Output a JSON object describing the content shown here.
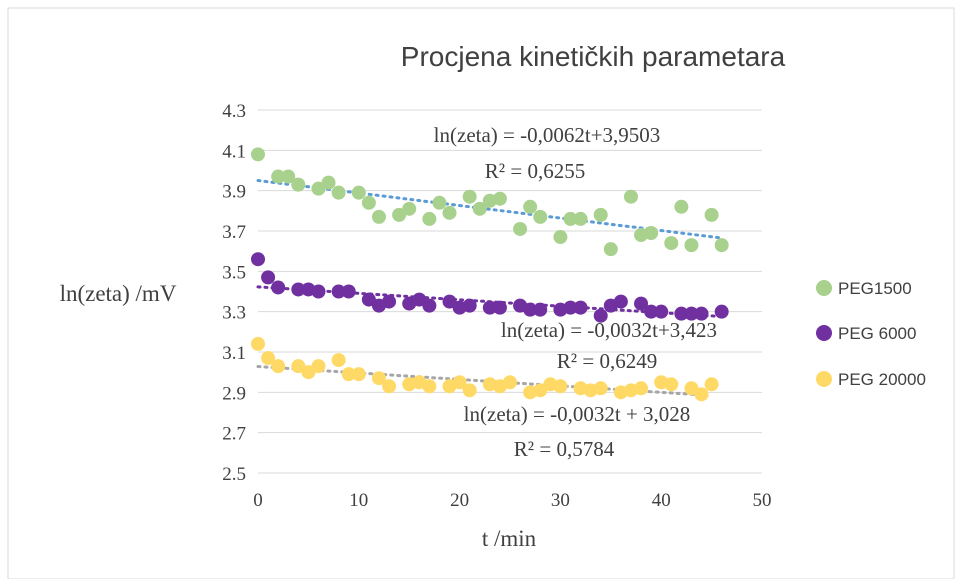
{
  "chart_data": {
    "type": "scatter",
    "title": "Procjena kinetičkih parametara",
    "xlabel": "t /min",
    "ylabel": "ln(zeta) /mV",
    "xlim": [
      0,
      50
    ],
    "ylim": [
      2.5,
      4.3
    ],
    "x_ticks": [
      "0",
      "10",
      "20",
      "30",
      "40",
      "50"
    ],
    "y_ticks": [
      "2.5",
      "2.7",
      "2.9",
      "3.1",
      "3.3",
      "3.5",
      "3.7",
      "3.9",
      "4.1",
      "4.3"
    ],
    "grid": true,
    "legend_position": "right",
    "series": [
      {
        "name": "PEG1500",
        "color": "#a9d18e",
        "trend_color": "#5b9bd5",
        "trendline": {
          "slope": -0.0062,
          "intercept": 3.9503
        },
        "equation": "ln(zeta) = -0,0062t+3,9503",
        "r2": "R² = 0,6255",
        "points": [
          [
            0,
            4.08
          ],
          [
            2,
            3.97
          ],
          [
            3,
            3.97
          ],
          [
            4,
            3.93
          ],
          [
            6,
            3.91
          ],
          [
            7,
            3.94
          ],
          [
            8,
            3.89
          ],
          [
            10,
            3.89
          ],
          [
            11,
            3.84
          ],
          [
            12,
            3.77
          ],
          [
            14,
            3.78
          ],
          [
            15,
            3.81
          ],
          [
            17,
            3.76
          ],
          [
            18,
            3.84
          ],
          [
            19,
            3.79
          ],
          [
            21,
            3.87
          ],
          [
            22,
            3.81
          ],
          [
            23,
            3.85
          ],
          [
            24,
            3.86
          ],
          [
            26,
            3.71
          ],
          [
            27,
            3.82
          ],
          [
            28,
            3.77
          ],
          [
            30,
            3.67
          ],
          [
            31,
            3.76
          ],
          [
            32,
            3.76
          ],
          [
            34,
            3.78
          ],
          [
            35,
            3.61
          ],
          [
            37,
            3.87
          ],
          [
            38,
            3.68
          ],
          [
            39,
            3.69
          ],
          [
            41,
            3.64
          ],
          [
            42,
            3.82
          ],
          [
            43,
            3.63
          ],
          [
            45,
            3.78
          ],
          [
            46,
            3.63
          ]
        ]
      },
      {
        "name": "PEG 6000",
        "color": "#7030a0",
        "trend_color": "#7030a0",
        "trendline": {
          "slope": -0.0032,
          "intercept": 3.423
        },
        "equation": "ln(zeta) = -0,0032t+3,423",
        "r2": "R² = 0,6249",
        "points": [
          [
            0,
            3.56
          ],
          [
            1,
            3.47
          ],
          [
            2,
            3.42
          ],
          [
            4,
            3.41
          ],
          [
            5,
            3.41
          ],
          [
            6,
            3.4
          ],
          [
            8,
            3.4
          ],
          [
            9,
            3.4
          ],
          [
            11,
            3.36
          ],
          [
            12,
            3.33
          ],
          [
            13,
            3.35
          ],
          [
            15,
            3.34
          ],
          [
            16,
            3.36
          ],
          [
            17,
            3.33
          ],
          [
            19,
            3.35
          ],
          [
            20,
            3.32
          ],
          [
            21,
            3.33
          ],
          [
            23,
            3.32
          ],
          [
            24,
            3.32
          ],
          [
            26,
            3.33
          ],
          [
            27,
            3.31
          ],
          [
            28,
            3.31
          ],
          [
            30,
            3.31
          ],
          [
            31,
            3.32
          ],
          [
            32,
            3.32
          ],
          [
            34,
            3.28
          ],
          [
            35,
            3.33
          ],
          [
            36,
            3.35
          ],
          [
            38,
            3.34
          ],
          [
            39,
            3.3
          ],
          [
            40,
            3.3
          ],
          [
            42,
            3.29
          ],
          [
            43,
            3.29
          ],
          [
            44,
            3.29
          ],
          [
            46,
            3.3
          ]
        ]
      },
      {
        "name": "PEG 20000",
        "color": "#ffd966",
        "trend_color": "#a6a6a6",
        "trendline": {
          "slope": -0.0032,
          "intercept": 3.028
        },
        "equation": "ln(zeta) = -0,0032t + 3,028",
        "r2": "R² = 0,5784",
        "points": [
          [
            0,
            3.14
          ],
          [
            1,
            3.07
          ],
          [
            2,
            3.03
          ],
          [
            4,
            3.03
          ],
          [
            5,
            3.0
          ],
          [
            6,
            3.03
          ],
          [
            8,
            3.06
          ],
          [
            9,
            2.99
          ],
          [
            10,
            2.99
          ],
          [
            12,
            2.97
          ],
          [
            13,
            2.93
          ],
          [
            15,
            2.94
          ],
          [
            16,
            2.95
          ],
          [
            17,
            2.93
          ],
          [
            19,
            2.93
          ],
          [
            20,
            2.95
          ],
          [
            21,
            2.91
          ],
          [
            23,
            2.94
          ],
          [
            24,
            2.93
          ],
          [
            25,
            2.95
          ],
          [
            27,
            2.9
          ],
          [
            28,
            2.91
          ],
          [
            29,
            2.94
          ],
          [
            30,
            2.93
          ],
          [
            32,
            2.92
          ],
          [
            33,
            2.91
          ],
          [
            34,
            2.92
          ],
          [
            36,
            2.9
          ],
          [
            37,
            2.91
          ],
          [
            38,
            2.92
          ],
          [
            40,
            2.95
          ],
          [
            41,
            2.94
          ],
          [
            43,
            2.92
          ],
          [
            44,
            2.89
          ],
          [
            45,
            2.94
          ]
        ]
      }
    ]
  }
}
